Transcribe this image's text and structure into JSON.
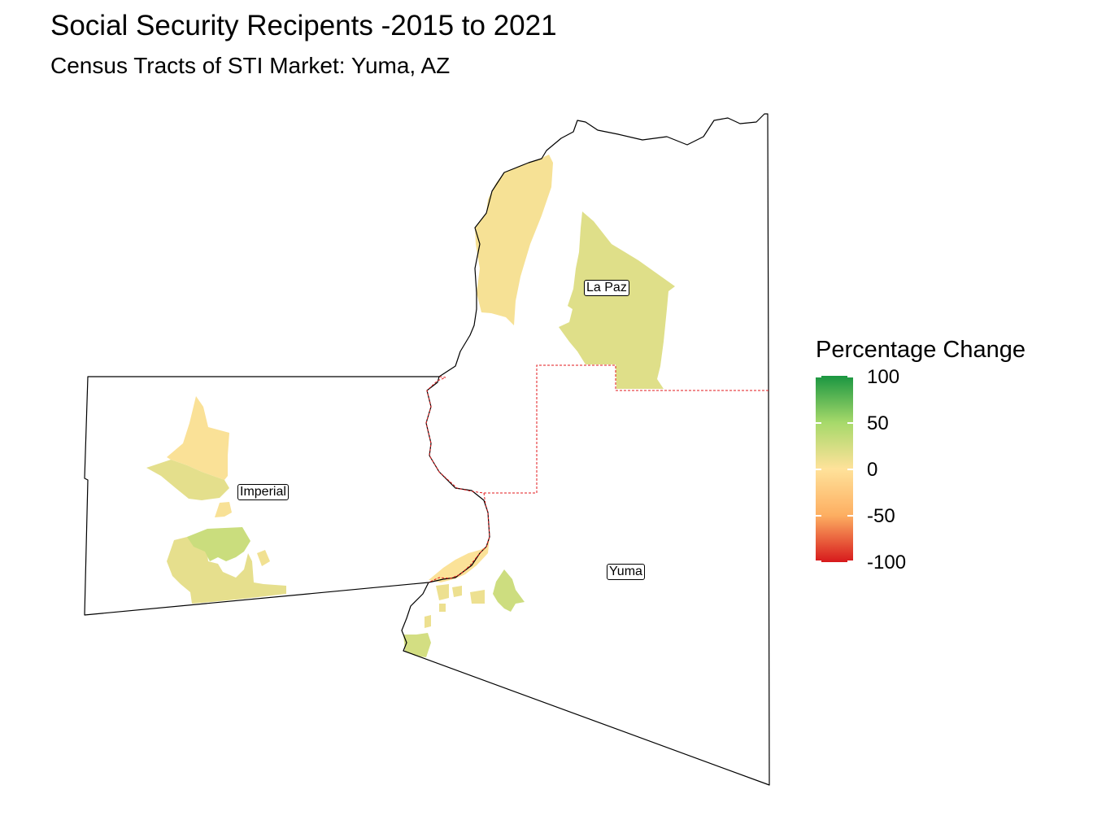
{
  "title": "Social Security Recipents -2015 to 2021",
  "subtitle": "Census Tracts of STI Market: Yuma, AZ",
  "legend": {
    "title": "Percentage Change",
    "ticks": [
      "100",
      "50",
      "0",
      "-50",
      "-100"
    ],
    "range": [
      -100,
      100
    ],
    "colors": {
      "high": "#1a9641",
      "mid_high": "#a6d96a",
      "mid": "#ffe29a",
      "mid_low": "#fdae61",
      "low": "#d7191c"
    }
  },
  "counties": [
    {
      "name": "La Paz"
    },
    {
      "name": "Imperial"
    },
    {
      "name": "Yuma"
    }
  ],
  "boundary_colors": {
    "county": "#000000",
    "market": "#e31a1c"
  },
  "tract_values": {
    "la_paz_west": 5,
    "la_paz_east": 18,
    "imperial_north": 3,
    "imperial_southwest": 15,
    "imperial_mid_small": 4,
    "imperial_south_main": 14,
    "imperial_south_green": 30,
    "imperial_south_strip": 8,
    "yuma_river": 2,
    "yuma_east_cluster": 28,
    "yuma_southwest": 25,
    "yuma_small": 10
  }
}
